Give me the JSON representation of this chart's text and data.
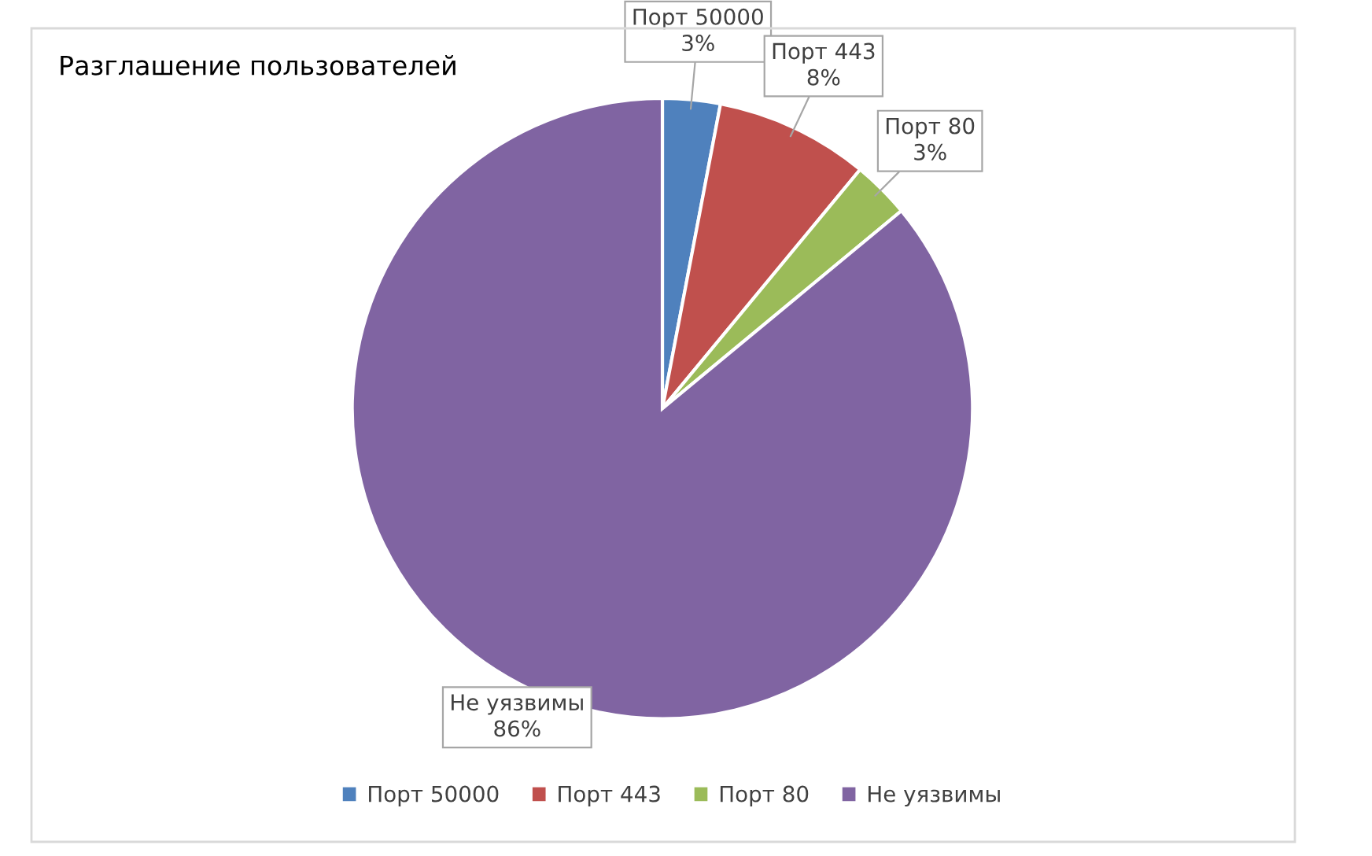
{
  "chart_data": {
    "type": "pie",
    "title": "Разглашение пользователей",
    "categories": [
      "Порт 50000",
      "Порт 443",
      "Порт 80",
      "Не уязвимы"
    ],
    "values": [
      3,
      8,
      3,
      86
    ],
    "value_labels": [
      "3%",
      "8%",
      "3%",
      "86%"
    ],
    "colors": [
      "#4f81bd",
      "#c0504d",
      "#9bbb59",
      "#8064a2"
    ],
    "legend": "bottom"
  }
}
